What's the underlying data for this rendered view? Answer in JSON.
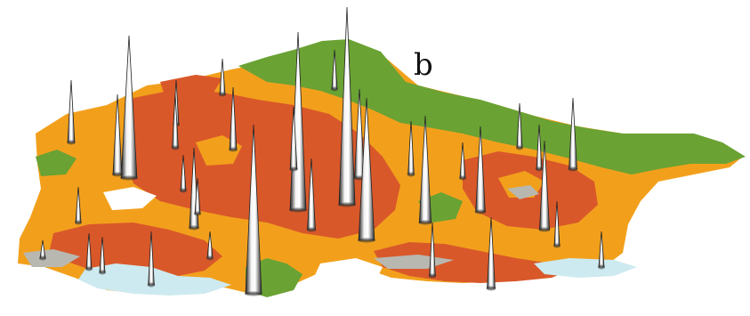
{
  "panel": {
    "label": "b"
  },
  "colors": {
    "background": "#ffffff",
    "green": "#6aa233",
    "orange": "#f2a01c",
    "red_orange": "#d9582a",
    "water": "#cdeaf0",
    "gray": "#b8b8b0",
    "spike_light": "#ffffff",
    "spike_dark": "#1a1a1a"
  },
  "legend": [],
  "icons": [
    "spike-peak-icon"
  ]
}
